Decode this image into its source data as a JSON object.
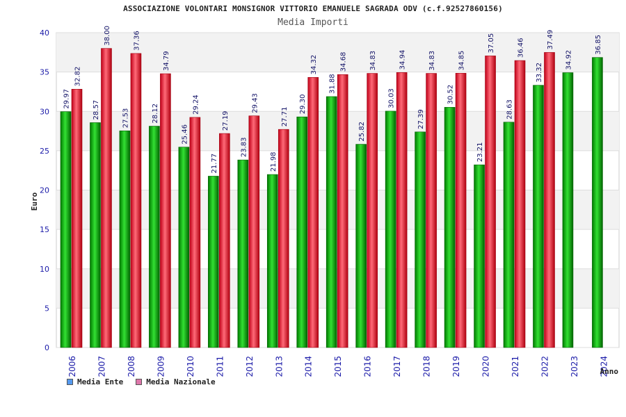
{
  "chart_data": {
    "type": "bar",
    "title": "ASSOCIAZIONE VOLONTARI MONSIGNOR VITTORIO EMANUELE SAGRADA ODV (c.f.92527860156)",
    "subtitle": "Media Importi",
    "xlabel": "Anno",
    "ylabel": "Euro",
    "ylim": [
      0,
      40
    ],
    "yticks": [
      "0",
      "5",
      "10",
      "15",
      "20",
      "25",
      "30",
      "35",
      "40"
    ],
    "categories": [
      "2006",
      "2007",
      "2008",
      "2009",
      "2010",
      "2011",
      "2012",
      "2013",
      "2014",
      "2015",
      "2016",
      "2017",
      "2018",
      "2019",
      "2020",
      "2021",
      "2022",
      "2023",
      "2024"
    ],
    "series": [
      {
        "name": "Media Ente",
        "color": "#00b400",
        "values": [
          29.97,
          28.57,
          27.53,
          28.12,
          25.46,
          21.77,
          23.83,
          21.98,
          29.3,
          31.88,
          25.82,
          30.03,
          27.39,
          30.52,
          23.21,
          28.63,
          33.32,
          34.92,
          36.85
        ],
        "labels": [
          "29.97",
          "28.57",
          "27.53",
          "28.12",
          "25.46",
          "21.77",
          "23.83",
          "21.98",
          "29.30",
          "31.88",
          "25.82",
          "30.03",
          "27.39",
          "30.52",
          "23.21",
          "28.63",
          "33.32",
          "34.92",
          "36.85"
        ]
      },
      {
        "name": "Media Nazionale",
        "color": "#e8182c",
        "values": [
          32.82,
          38.0,
          37.36,
          34.79,
          29.24,
          27.19,
          29.43,
          27.71,
          34.32,
          34.68,
          34.83,
          34.94,
          34.83,
          34.85,
          37.05,
          36.46,
          37.49,
          null,
          null
        ],
        "labels": [
          "32.82",
          "38.00",
          "37.36",
          "34.79",
          "29.24",
          "27.19",
          "29.43",
          "27.71",
          "34.32",
          "34.68",
          "34.83",
          "34.94",
          "34.83",
          "34.85",
          "37.05",
          "36.46",
          "37.49",
          null,
          null
        ]
      }
    ],
    "legend": [
      {
        "name": "Media Ente",
        "color": "#5599ee"
      },
      {
        "name": "Media Nazionale",
        "color": "#dd77aa"
      }
    ],
    "grid": true,
    "legend_position": "bottom-left"
  }
}
